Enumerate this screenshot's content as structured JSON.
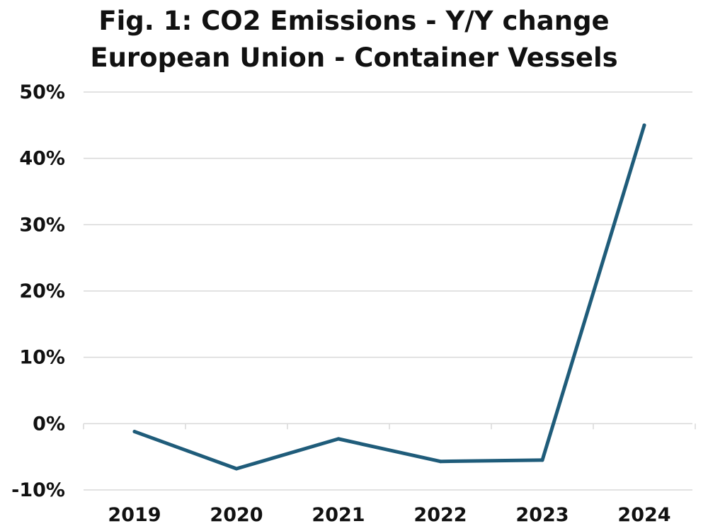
{
  "chart_data": {
    "type": "line",
    "title": "Fig. 1: CO2 Emissions - Y/Y change",
    "subtitle": "European Union - Container Vessels",
    "xlabel": "",
    "ylabel": "",
    "categories": [
      "2019",
      "2020",
      "2021",
      "2022",
      "2023",
      "2024"
    ],
    "series": [
      {
        "values": [
          -1.2,
          -6.8,
          -2.3,
          -5.7,
          -5.5,
          45.0
        ]
      }
    ],
    "ylim": [
      -10,
      50
    ],
    "yticks": [
      -10,
      0,
      10,
      20,
      30,
      40,
      50
    ],
    "ytick_labels": [
      "-10%",
      "0%",
      "10%",
      "20%",
      "30%",
      "40%",
      "50%"
    ],
    "grid": "horizontal",
    "legend": "none",
    "line_color": "#1f5c7a",
    "grid_color": "#d9d9d9"
  }
}
